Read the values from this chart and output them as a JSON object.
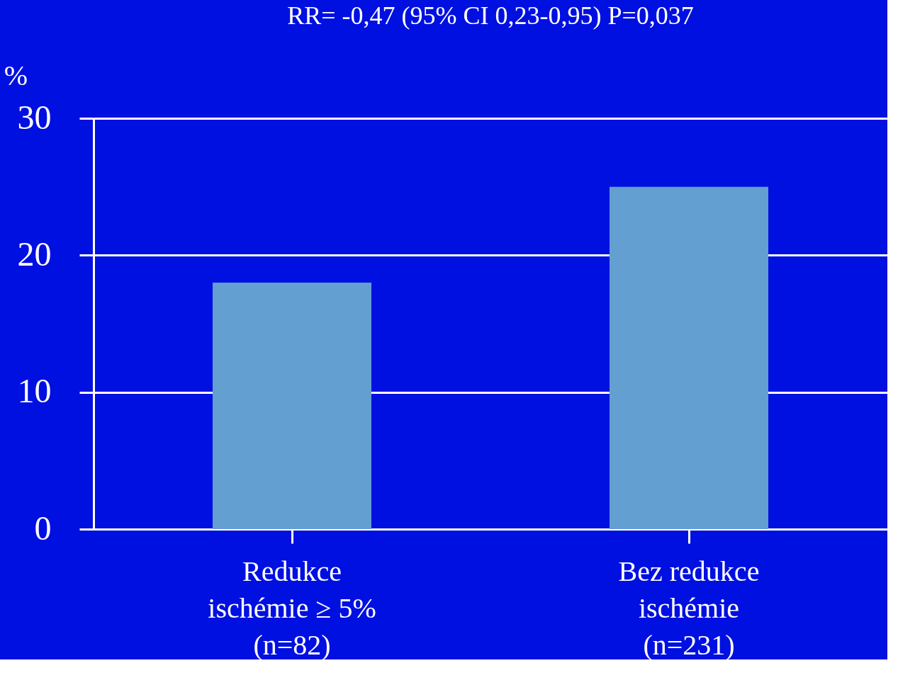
{
  "chart_data": {
    "type": "bar",
    "title": "RR= -0,47 (95% CI 0,23-0,95) P=0,037",
    "ylabel": "%",
    "categories": [
      "Redukce\nischémie ≥ 5%\n(n=82)",
      "Bez redukce\nischémie\n(n=231)"
    ],
    "values": [
      18,
      25
    ],
    "color": "#639fd0",
    "ylim": [
      0,
      30
    ],
    "yticks": [
      0,
      10,
      20,
      30
    ],
    "grid": "y"
  }
}
